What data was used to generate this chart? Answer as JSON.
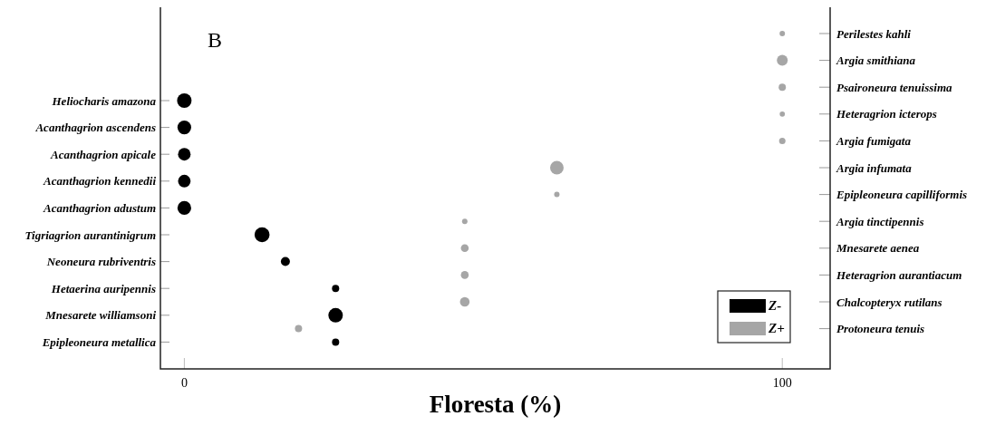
{
  "chart_data": {
    "type": "bubble",
    "orientation": "horizontal",
    "categories": [
      null,
      null,
      null,
      null,
      null,
      "Heliocharis amazona",
      null,
      "Acanthagrion ascendens",
      null,
      "Acanthagrion apicale",
      null,
      "Acanthagrion kennedii",
      null,
      "Acanthagrion adustum",
      null,
      "Tigriagrion aurantinigrum",
      null,
      "Neoneura rubriventris",
      null,
      "Hetaerina auripennis",
      null,
      "Mnesarete williamsoni",
      null,
      "Epipleoneura metallica"
    ],
    "y2_categories": [
      "Perilestes kahli",
      null,
      "Argia smithiana",
      null,
      "Psaironeura tenuissima",
      null,
      "Heteragrion icterops",
      null,
      "Argia fumigata",
      null,
      "Argia infumata",
      null,
      "Epipleoneura capilliformis",
      null,
      "Argia tinctipennis",
      null,
      "Mnesarete aenea",
      null,
      "Heteragrion aurantiacum",
      null,
      "Chalcopteryx rutilans",
      null,
      "Protoneura tenuis",
      null
    ],
    "xlabel": "Floresta (%)",
    "xlim": [
      -4,
      108
    ],
    "xticks": [
      0,
      100
    ],
    "legend": "bottom right",
    "annotations": [
      "B"
    ],
    "series": [
      {
        "name": "Z-",
        "color": "#000000",
        "values": [
          null,
          null,
          null,
          null,
          null,
          0,
          null,
          0,
          null,
          0,
          null,
          0,
          null,
          0,
          null,
          13,
          null,
          16.9,
          null,
          25.3,
          null,
          25.3,
          null,
          25.3
        ],
        "sizes": [
          null,
          null,
          null,
          null,
          null,
          0.93,
          null,
          0.83,
          null,
          0.7,
          null,
          0.7,
          null,
          0.83,
          null,
          1,
          null,
          0.36,
          null,
          0.23,
          null,
          0.93,
          null,
          0.23
        ]
      },
      {
        "name": "Z+",
        "color": "#a6a6a6",
        "values": [
          100,
          null,
          100,
          null,
          100,
          null,
          100,
          null,
          100,
          null,
          62.3,
          null,
          62.3,
          null,
          46.9,
          null,
          46.9,
          null,
          46.9,
          null,
          46.9,
          null,
          19.1,
          null
        ],
        "sizes": [
          0.13,
          null,
          0.52,
          null,
          0.23,
          null,
          0.12,
          null,
          0.18,
          null,
          0.81,
          null,
          0.13,
          null,
          0.13,
          null,
          0.27,
          null,
          0.27,
          null,
          0.41,
          null,
          0.23,
          null
        ]
      }
    ]
  }
}
